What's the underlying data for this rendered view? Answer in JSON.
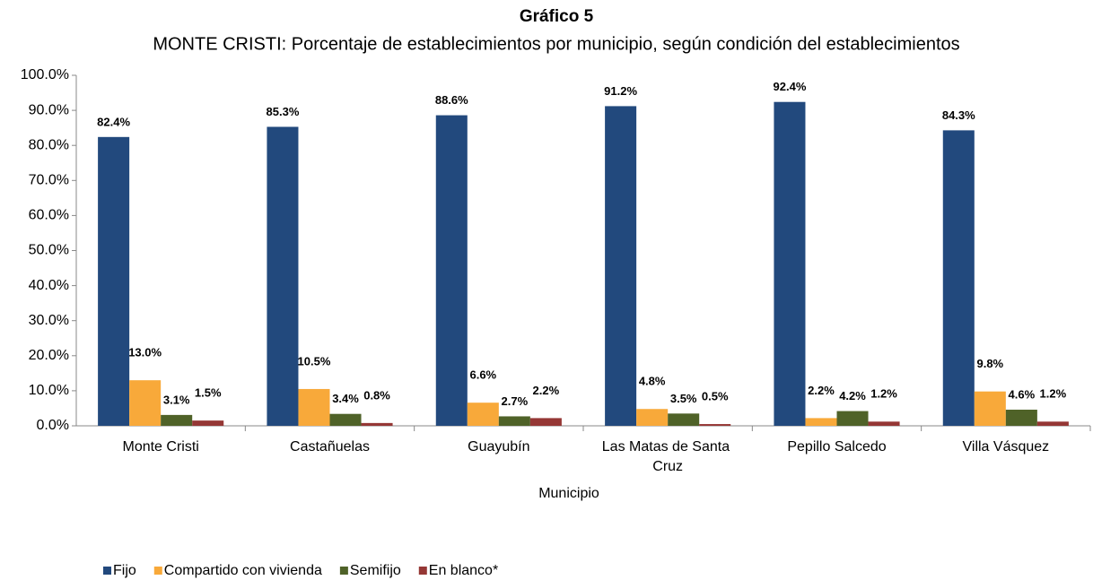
{
  "chart_data": {
    "type": "bar",
    "title": "Gráfico 5",
    "subtitle": "MONTE CRISTI: Porcentaje de establecimientos por municipio, según condición del establecimientos",
    "x_label": "Municipio",
    "categories": [
      "Monte Cristi",
      "Castañuelas",
      "Guayubín",
      "Las Matas de Santa Cruz",
      "Pepillo Salcedo",
      "Villa Vásquez"
    ],
    "series": [
      {
        "name": "Fijo",
        "color": "#22497d",
        "values": [
          82.4,
          85.3,
          88.6,
          91.2,
          92.4,
          84.3
        ],
        "value_labels": [
          "82.4%",
          "85.3%",
          "88.6%",
          "91.2%",
          "92.4%",
          "84.3%"
        ]
      },
      {
        "name": "Compartido con vivienda",
        "color": "#f8a93a",
        "values": [
          13.0,
          10.5,
          6.6,
          4.8,
          2.2,
          9.8
        ],
        "value_labels": [
          "13.0%",
          "10.5%",
          "6.6%",
          "4.8%",
          "2.2%",
          "9.8%"
        ]
      },
      {
        "name": "Semifijo",
        "color": "#4f6228",
        "values": [
          3.1,
          3.4,
          2.7,
          3.5,
          4.2,
          4.6
        ],
        "value_labels": [
          "3.1%",
          "3.4%",
          "2.7%",
          "3.5%",
          "4.2%",
          "4.6%"
        ]
      },
      {
        "name": "En blanco*",
        "color": "#953735",
        "values": [
          1.5,
          0.8,
          2.2,
          0.5,
          1.2,
          1.2
        ],
        "value_labels": [
          "1.5%",
          "0.8%",
          "2.2%",
          "0.5%",
          "1.2%",
          "1.2%"
        ]
      }
    ],
    "ylim": [
      0,
      100
    ],
    "yticks": [
      {
        "value": 0,
        "label": "0.0%"
      },
      {
        "value": 10,
        "label": "10.0%"
      },
      {
        "value": 20,
        "label": "20.0%"
      },
      {
        "value": 30,
        "label": "30.0%"
      },
      {
        "value": 40,
        "label": "40.0%"
      },
      {
        "value": 50,
        "label": "50.0%"
      },
      {
        "value": 60,
        "label": "60.0%"
      },
      {
        "value": 70,
        "label": "70.0%"
      },
      {
        "value": 80,
        "label": "80.0%"
      },
      {
        "value": 90,
        "label": "90.0%"
      },
      {
        "value": 100,
        "label": "100.0%"
      }
    ],
    "legend": "bottom"
  }
}
